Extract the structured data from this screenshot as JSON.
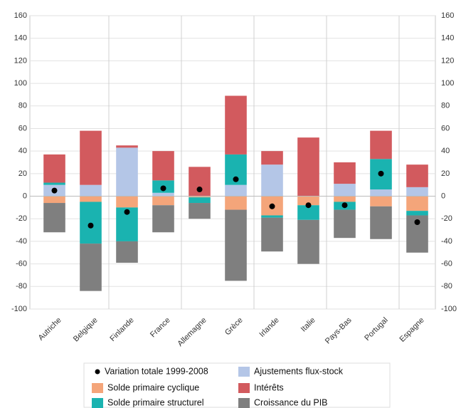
{
  "chart_data": {
    "type": "bar",
    "categories": [
      "Autriche",
      "Belgique",
      "Finlande",
      "France",
      "Allemagne",
      "Grèce",
      "Irlande",
      "Italie",
      "Pays-Bas",
      "Portugal",
      "Espagne"
    ],
    "series": [
      {
        "name": "Solde primaire cyclique",
        "color": "#f4a57a",
        "values": [
          -6,
          -5,
          -10,
          -8,
          -1,
          -12,
          -17,
          -8,
          -5,
          -9,
          -13
        ]
      },
      {
        "name": "Ajustements flux-stock",
        "color": "#b4c6e7",
        "values": [
          10,
          10,
          43,
          3,
          0,
          10,
          28,
          0,
          11,
          6,
          8
        ]
      },
      {
        "name": "Solde primaire structurel",
        "color": "#1ab3b0",
        "values": [
          2,
          -37,
          -30,
          11,
          -5,
          27,
          -2,
          -13,
          -7,
          27,
          -4
        ]
      },
      {
        "name": "Intérêts",
        "color": "#d25a5e",
        "values": [
          25,
          48,
          2,
          26,
          26,
          52,
          12,
          52,
          19,
          25,
          20
        ]
      },
      {
        "name": "Croissance du PIB",
        "color": "#7f7f7f",
        "values": [
          -26,
          -42,
          -19,
          -24,
          -14,
          -63,
          -30,
          -39,
          -25,
          -29,
          -33
        ]
      }
    ],
    "points": {
      "name": "Variation totale 1999-2008",
      "color": "#000000",
      "values": [
        5,
        -26,
        -14,
        7,
        6,
        15,
        -9,
        -8,
        -8,
        20,
        -23
      ]
    },
    "ylim": [
      -100,
      160
    ],
    "yticks": [
      -100,
      -80,
      -60,
      -40,
      -20,
      0,
      20,
      40,
      60,
      80,
      100,
      120,
      140,
      160
    ],
    "grid": true
  }
}
